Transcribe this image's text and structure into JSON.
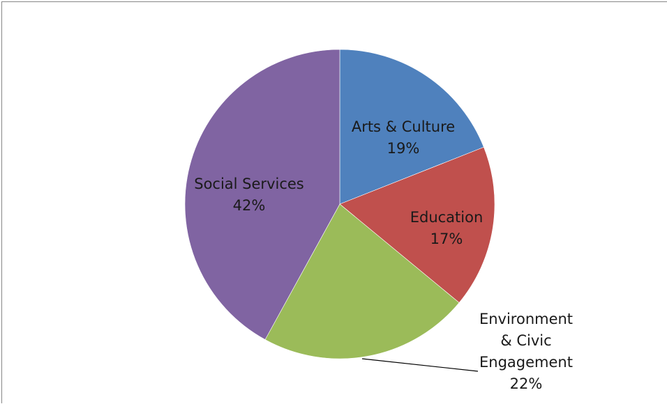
{
  "chart_data": {
    "type": "pie",
    "title": "",
    "slices": [
      {
        "label_lines": [
          "Arts & Culture"
        ],
        "percent_label": "19%",
        "value": 19,
        "color": "#4F81BD"
      },
      {
        "label_lines": [
          "Education"
        ],
        "percent_label": "17%",
        "value": 17,
        "color": "#C0504D"
      },
      {
        "label_lines": [
          "Environment",
          "& Civic",
          "Engagement"
        ],
        "percent_label": "22%",
        "value": 22,
        "color": "#9BBB59"
      },
      {
        "label_lines": [
          "Social Services"
        ],
        "percent_label": "42%",
        "value": 42,
        "color": "#8064A2"
      }
    ],
    "start_angle_deg": 0,
    "direction": "clockwise",
    "legend": "none"
  }
}
